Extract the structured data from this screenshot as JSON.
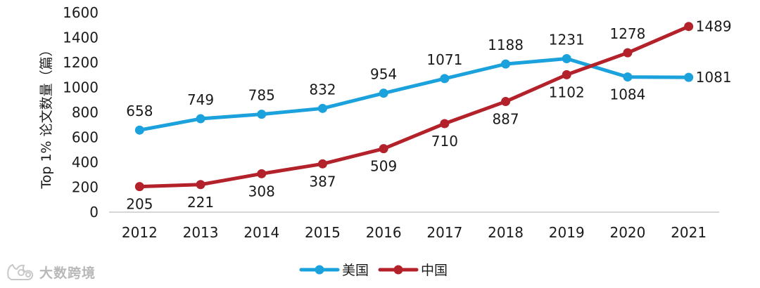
{
  "watermark": {
    "text": "大数跨境",
    "icon": "cat-logo-icon"
  },
  "colors": {
    "us": "#1ba1dc",
    "china": "#b3222a",
    "axis": "#c8c8c8",
    "text": "#1a1a1a"
  },
  "chart_data": {
    "type": "line",
    "title": "",
    "xlabel": "",
    "ylabel": "Top 1% 论文数量（篇）",
    "ylim": [
      0,
      1600
    ],
    "yticks": [
      0,
      200,
      400,
      600,
      800,
      1000,
      1200,
      1400,
      1600
    ],
    "grid": false,
    "legend_position": "bottom-center",
    "categories": [
      "2012",
      "2013",
      "2014",
      "2015",
      "2016",
      "2017",
      "2018",
      "2019",
      "2020",
      "2021"
    ],
    "series": [
      {
        "name": "美国",
        "color": "#1ba1dc",
        "values": [
          658,
          749,
          785,
          832,
          954,
          1071,
          1188,
          1231,
          1084,
          1081
        ]
      },
      {
        "name": "中国",
        "color": "#b3222a",
        "values": [
          205,
          221,
          308,
          387,
          509,
          710,
          887,
          1102,
          1278,
          1489
        ]
      }
    ]
  }
}
